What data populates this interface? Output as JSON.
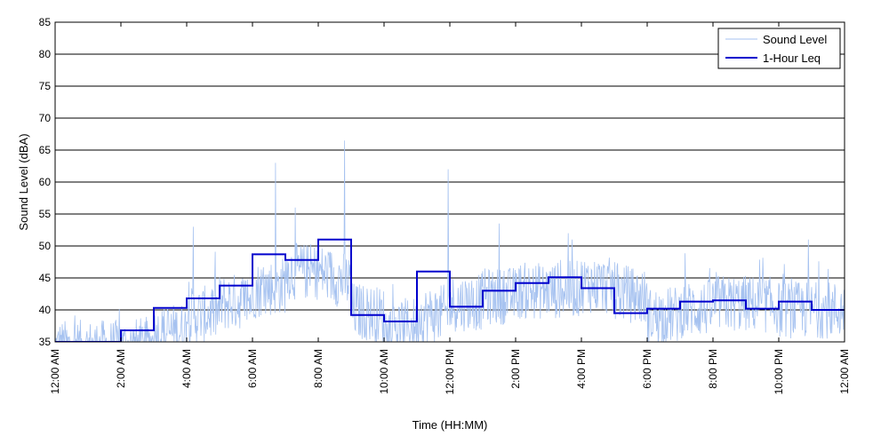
{
  "chart_data": {
    "type": "line",
    "xlabel": "Time (HH:MM)",
    "ylabel": "Sound Level (dBA)",
    "ylim": [
      35,
      85
    ],
    "yticks": [
      "35",
      "40",
      "45",
      "50",
      "55",
      "60",
      "65",
      "70",
      "75",
      "80",
      "85"
    ],
    "xlim_hours": [
      0,
      24
    ],
    "xticks": [
      {
        "hour": 0,
        "label": "12:00 AM"
      },
      {
        "hour": 2,
        "label": "2:00 AM"
      },
      {
        "hour": 4,
        "label": "4:00 AM"
      },
      {
        "hour": 6,
        "label": "6:00 AM"
      },
      {
        "hour": 8,
        "label": "8:00 AM"
      },
      {
        "hour": 10,
        "label": "10:00 AM"
      },
      {
        "hour": 12,
        "label": "12:00 PM"
      },
      {
        "hour": 14,
        "label": "2:00 PM"
      },
      {
        "hour": 16,
        "label": "4:00 PM"
      },
      {
        "hour": 18,
        "label": "6:00 PM"
      },
      {
        "hour": 20,
        "label": "8:00 PM"
      },
      {
        "hour": 22,
        "label": "10:00 PM"
      },
      {
        "hour": 24,
        "label": "12:00 AM"
      }
    ],
    "grid": "horizontal",
    "legend_position": "top-right",
    "series": [
      {
        "name": "Sound Level",
        "color": "#a6c2f0",
        "style": "thin",
        "hour_center": [
          34,
          34,
          34,
          36,
          39,
          41,
          43,
          46,
          46,
          40,
          37,
          39,
          41,
          42,
          43,
          43,
          44,
          43,
          39,
          40,
          41,
          41,
          40,
          40
        ],
        "peaks": [
          {
            "hour": 6.7,
            "value": 63
          },
          {
            "hour": 7.3,
            "value": 56
          },
          {
            "hour": 8.8,
            "value": 66.5
          },
          {
            "hour": 11.95,
            "value": 62
          },
          {
            "hour": 4.2,
            "value": 53
          },
          {
            "hour": 13.5,
            "value": 53.5
          },
          {
            "hour": 15.6,
            "value": 52
          },
          {
            "hour": 22.9,
            "value": 51
          }
        ]
      },
      {
        "name": "1-Hour Leq",
        "color": "#0000cd",
        "style": "step",
        "values": [
          34,
          34,
          36.8,
          40.3,
          41.8,
          43.8,
          48.7,
          47.8,
          51.0,
          39.2,
          38.2,
          46.0,
          40.5,
          43.0,
          44.2,
          45.1,
          43.4,
          39.5,
          40.2,
          41.3,
          41.5,
          40.2,
          41.3,
          40.0
        ]
      }
    ]
  }
}
